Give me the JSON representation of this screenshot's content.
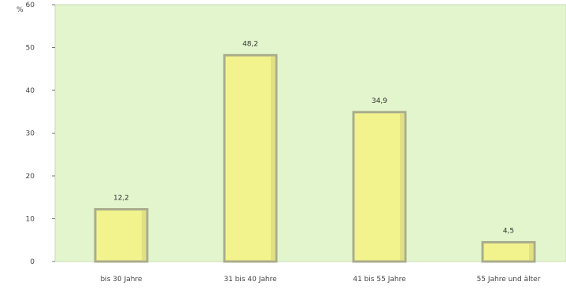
{
  "chart_data": {
    "type": "bar",
    "title": "",
    "xlabel": "",
    "ylabel": "%",
    "ylim": [
      0,
      60
    ],
    "yticks": [
      0,
      10,
      20,
      30,
      40,
      50,
      60
    ],
    "categories": [
      "bis 30 Jahre",
      "31 bis 40 Jahre",
      "41 bis 55 Jahre",
      "55 Jahre und älter"
    ],
    "values": [
      12.2,
      48.2,
      34.9,
      4.5
    ],
    "value_labels": [
      "12,2",
      "48,2",
      "34,9",
      "4,5"
    ],
    "grid": false,
    "legend": "none",
    "colors": {
      "plot_bg": "#e2f5cc",
      "plot_border": "#c8dcb3",
      "bar_fill": "#f3f38e",
      "bar_border": "#a9ad8c",
      "bar_shade": "#d2d27a",
      "axis": "#777777",
      "title": "#1f3f8f"
    }
  }
}
